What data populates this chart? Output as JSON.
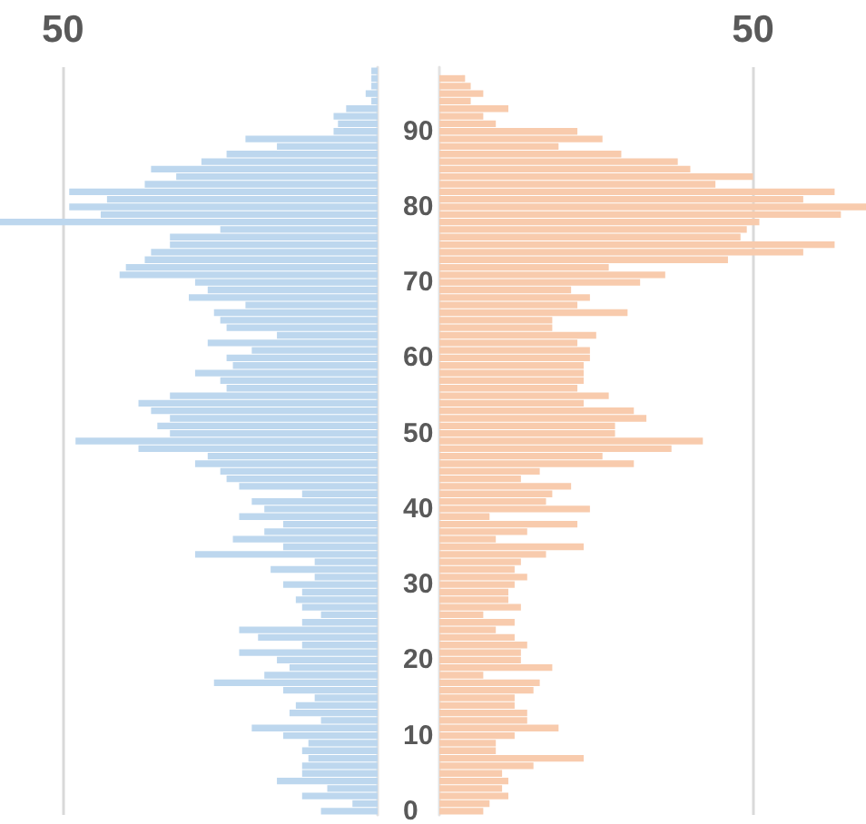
{
  "chart_data": [
    {
      "type": "bar",
      "orientation": "horizontal",
      "tick_labels": "x",
      "grid": "x",
      "categories": [
        null,
        null,
        null,
        null,
        null,
        null,
        null,
        null,
        "90",
        null,
        null,
        null,
        null,
        null,
        null,
        null,
        null,
        null,
        "80",
        null,
        null,
        null,
        null,
        null,
        null,
        null,
        null,
        null,
        "70",
        null,
        null,
        null,
        null,
        null,
        null,
        null,
        null,
        null,
        "60",
        null,
        null,
        null,
        null,
        null,
        null,
        null,
        null,
        null,
        "50",
        null,
        null,
        null,
        null,
        null,
        null,
        null,
        null,
        null,
        "40",
        null,
        null,
        null,
        null,
        null,
        null,
        null,
        null,
        null,
        "30",
        null,
        null,
        null,
        null,
        null,
        null,
        null,
        null,
        null,
        "20",
        null,
        null,
        null,
        null,
        null,
        null,
        null,
        null,
        null,
        "10",
        null,
        null,
        null,
        null,
        null,
        null,
        null,
        null,
        null,
        "0"
      ],
      "xlim": [
        60,
        0
      ],
      "xticks": [
        50
      ],
      "series": [
        {
          "color": "#bdd7ee",
          "values": [
            1,
            1,
            1,
            1.9,
            1,
            5,
            7,
            6.3,
            7,
            21,
            16,
            24,
            28,
            36,
            32,
            37,
            49,
            43,
            49,
            44,
            60,
            25,
            33,
            33,
            36,
            37,
            40,
            41,
            29,
            27,
            30,
            21,
            26,
            25,
            24,
            16,
            27,
            20,
            24,
            23,
            29,
            25,
            24,
            33,
            38,
            36,
            33,
            35,
            33,
            48,
            38,
            27,
            29,
            25,
            24,
            22,
            12,
            20,
            18,
            22,
            15,
            18,
            23,
            15,
            29,
            10,
            17,
            10,
            15,
            12,
            13,
            12,
            9,
            12,
            22,
            19,
            12,
            22,
            16,
            14,
            18,
            26,
            15,
            10,
            13,
            14,
            9,
            20,
            15,
            11,
            12,
            11,
            12,
            12,
            16,
            8,
            12,
            4,
            9
          ]
        }
      ]
    },
    {
      "type": "bar",
      "orientation": "horizontal",
      "grid": "x",
      "categories": [
        null,
        null,
        null,
        null,
        null,
        null,
        null,
        null,
        "90",
        null,
        null,
        null,
        null,
        null,
        null,
        null,
        null,
        null,
        "80",
        null,
        null,
        null,
        null,
        null,
        null,
        null,
        null,
        null,
        "70",
        null,
        null,
        null,
        null,
        null,
        null,
        null,
        null,
        null,
        "60",
        null,
        null,
        null,
        null,
        null,
        null,
        null,
        null,
        null,
        "50",
        null,
        null,
        null,
        null,
        null,
        null,
        null,
        null,
        null,
        "40",
        null,
        null,
        null,
        null,
        null,
        null,
        null,
        null,
        null,
        "30",
        null,
        null,
        null,
        null,
        null,
        null,
        null,
        null,
        null,
        "20",
        null,
        null,
        null,
        null,
        null,
        null,
        null,
        null,
        null,
        "10",
        null,
        null,
        null,
        null,
        null,
        null,
        null,
        null,
        null,
        "0"
      ],
      "xlim": [
        0,
        68
      ],
      "xticks": [
        50
      ],
      "series": [
        {
          "color": "#f8cbad",
          "values": [
            0,
            4.1,
            5,
            7,
            5,
            11,
            7,
            9,
            22,
            26,
            19,
            29,
            38,
            40,
            50,
            44,
            63,
            58,
            68,
            64,
            51,
            49,
            48,
            63,
            58,
            46,
            27,
            36,
            32,
            21,
            24,
            22,
            30,
            18,
            18,
            25,
            22,
            24,
            24,
            23,
            23,
            23,
            22,
            27,
            23,
            31,
            33,
            28,
            28,
            42,
            37,
            26,
            31,
            16,
            13,
            21,
            18,
            17,
            24,
            8,
            22,
            14,
            9,
            23,
            17,
            13,
            12,
            14,
            12,
            11,
            11,
            13,
            7,
            12,
            9,
            12,
            14,
            13,
            13,
            18,
            7,
            16,
            15,
            12,
            12,
            14,
            14,
            19,
            12,
            9,
            9,
            23,
            15,
            10,
            11,
            10,
            11,
            8,
            7
          ]
        }
      ]
    }
  ]
}
